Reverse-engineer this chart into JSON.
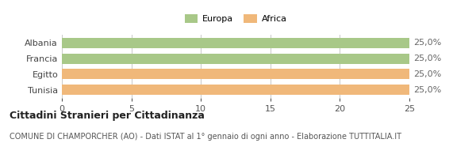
{
  "categories": [
    "Albania",
    "Francia",
    "Egitto",
    "Tunisia"
  ],
  "values": [
    25.0,
    25.0,
    25.0,
    25.0
  ],
  "bar_colors": [
    "#a8c888",
    "#a8c888",
    "#f0b87a",
    "#f0b87a"
  ],
  "bar_labels": [
    "25,0%",
    "25,0%",
    "25,0%",
    "25,0%"
  ],
  "legend_labels": [
    "Europa",
    "Africa"
  ],
  "legend_colors": [
    "#a8c888",
    "#f0b87a"
  ],
  "xlim": [
    0,
    25
  ],
  "xticks": [
    0,
    5,
    10,
    15,
    20,
    25
  ],
  "title": "Cittadini Stranieri per Cittadinanza",
  "subtitle": "COMUNE DI CHAMPORCHER (AO) - Dati ISTAT al 1° gennaio di ogni anno - Elaborazione TUTTITALIA.IT",
  "title_fontsize": 9,
  "subtitle_fontsize": 7,
  "label_fontsize": 8,
  "tick_fontsize": 8,
  "background_color": "#ffffff",
  "bar_edge_color": "none",
  "grid_color": "#cccccc",
  "bar_height": 0.65
}
